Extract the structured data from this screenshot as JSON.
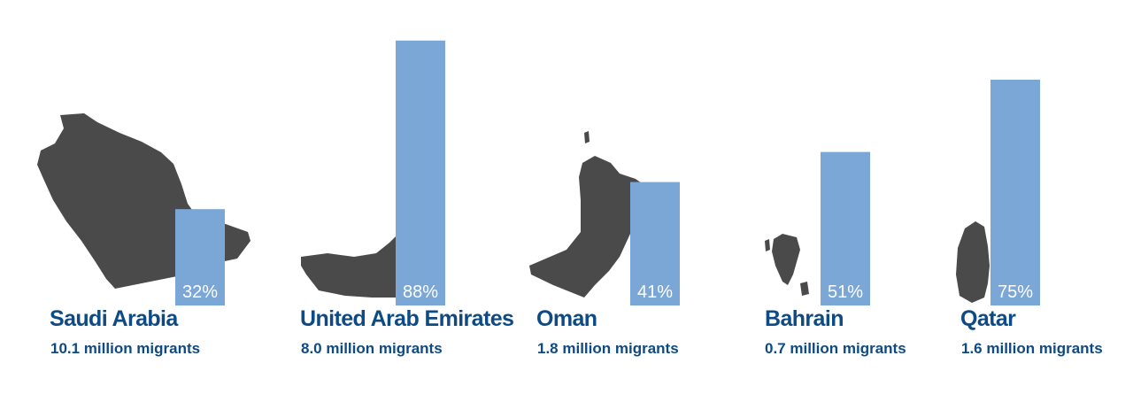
{
  "chart_data": {
    "type": "bar",
    "categories": [
      "Saudi Arabia",
      "United Arab Emirates",
      "Oman",
      "Bahrain",
      "Qatar"
    ],
    "values": [
      32,
      88,
      41,
      51,
      75
    ],
    "value_labels": [
      "32%",
      "88%",
      "41%",
      "51%",
      "75%"
    ],
    "subtitles": [
      "10.1 million migrants",
      "8.0 million migrants",
      "1.8 million migrants",
      "0.7 million migrants",
      "1.6 million migrants"
    ],
    "ylim": [
      0,
      100
    ],
    "grid": false,
    "title": "",
    "xlabel": "",
    "ylabel": ""
  },
  "colors": {
    "bar": "#7ba7d7",
    "map": "#4a4a4a",
    "label": "#0e4a84",
    "value_text": "#ffffff"
  },
  "icons": [
    "saudi-arabia-map-icon",
    "uae-map-icon",
    "oman-map-icon",
    "bahrain-map-icon",
    "qatar-map-icon"
  ]
}
